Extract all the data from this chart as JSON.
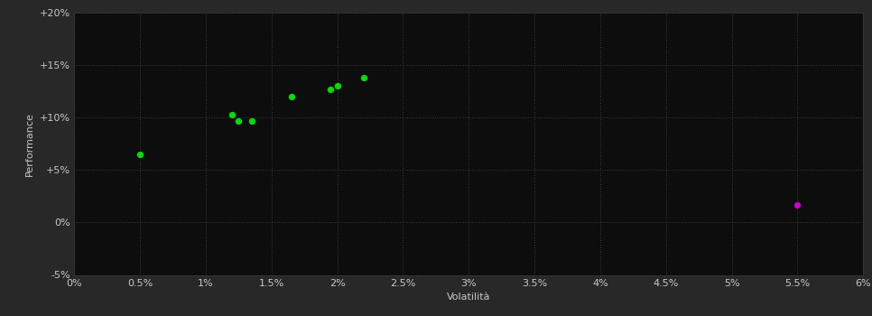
{
  "green_points": [
    [
      0.005,
      0.065
    ],
    [
      0.012,
      0.103
    ],
    [
      0.0125,
      0.097
    ],
    [
      0.0135,
      0.097
    ],
    [
      0.0165,
      0.12
    ],
    [
      0.0195,
      0.127
    ],
    [
      0.02,
      0.13
    ],
    [
      0.022,
      0.138
    ]
  ],
  "magenta_points": [
    [
      0.055,
      0.017
    ]
  ],
  "green_color": "#00dd00",
  "magenta_color": "#cc00cc",
  "background_color": "#1a1a1a",
  "plot_bg_color": "#0d0d0d",
  "grid_color": "#3a3a3a",
  "text_color": "#c8c8c8",
  "xlabel": "Volatilità",
  "ylabel": "Performance",
  "xlim": [
    0.0,
    0.06
  ],
  "ylim": [
    -0.05,
    0.2
  ],
  "xticks": [
    0.0,
    0.005,
    0.01,
    0.015,
    0.02,
    0.025,
    0.03,
    0.035,
    0.04,
    0.045,
    0.05,
    0.055,
    0.06
  ],
  "yticks": [
    -0.05,
    0.0,
    0.05,
    0.1,
    0.15,
    0.2
  ],
  "xtick_labels": [
    "0%",
    "0.5%",
    "1%",
    "1.5%",
    "2%",
    "2.5%",
    "3%",
    "3.5%",
    "4%",
    "4.5%",
    "5%",
    "5.5%",
    "6%"
  ],
  "ytick_labels": [
    "-5%",
    "0%",
    "+5%",
    "+10%",
    "+15%",
    "+20%"
  ],
  "marker_size": 28,
  "axis_label_fontsize": 8,
  "tick_fontsize": 8,
  "outer_bg_color": "#282828"
}
